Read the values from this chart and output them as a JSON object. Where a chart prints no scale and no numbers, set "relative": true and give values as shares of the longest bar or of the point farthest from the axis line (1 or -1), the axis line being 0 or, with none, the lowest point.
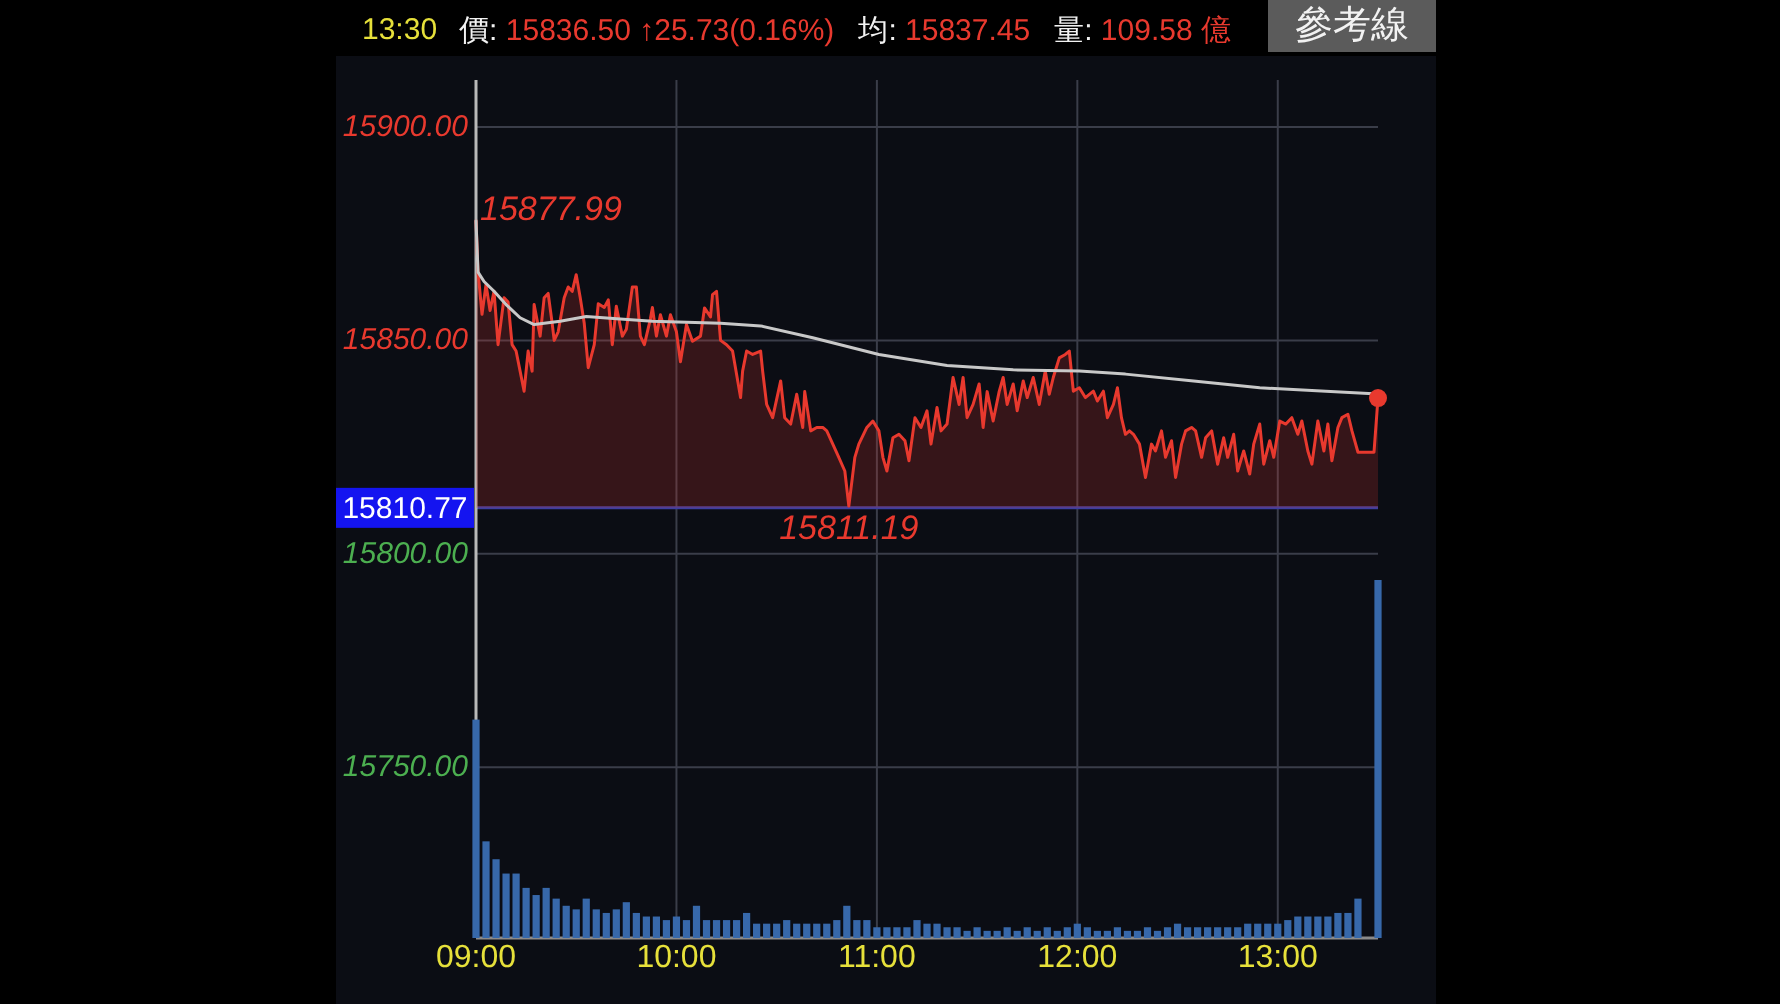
{
  "chart_data": [
    {
      "type": "line",
      "title": "13:30",
      "annotations": [
        "價: 15836.50 ↑25.73(0.16%)",
        "均: 15837.45",
        "量: 109.58 億",
        "參考線",
        {
          "text": "15877.99",
          "x": 9.0,
          "y": 15877.99
        },
        {
          "text": "15811.19",
          "x": 10.86,
          "y": 15811.19
        }
      ],
      "xlim": [
        9,
        13.5
      ],
      "xticks": [
        9,
        10,
        11,
        12,
        13
      ],
      "ylim": [
        15710,
        15911
      ],
      "yticks": [
        {
          "value": 15750,
          "label": "15750.00"
        },
        {
          "value": 15800,
          "label": "15800.00"
        },
        {
          "value": 15850,
          "label": "15850.00"
        },
        {
          "value": 15900,
          "label": "15900.00"
        }
      ],
      "grid": true,
      "tick_labels": "y",
      "ref_lines": [
        {
          "axis": "y",
          "value": 15810.77,
          "label": "15810.77",
          "color": "#3c3fa0"
        }
      ],
      "series": [
        {
          "type": "area",
          "color": "#e8392e",
          "x": [
            9.0,
            9.01,
            9.03,
            9.05,
            9.07,
            9.09,
            9.11,
            9.14,
            9.16,
            9.18,
            9.2,
            9.22,
            9.24,
            9.26,
            9.28,
            9.29,
            9.32,
            9.34,
            9.36,
            9.38,
            9.39,
            9.41,
            9.44,
            9.46,
            9.48,
            9.5,
            9.52,
            9.54,
            9.56,
            9.59,
            9.61,
            9.64,
            9.66,
            9.68,
            9.7,
            9.73,
            9.75,
            9.78,
            9.8,
            9.82,
            9.84,
            9.87,
            9.88,
            9.9,
            9.92,
            9.95,
            9.97,
            10.0,
            10.02,
            10.05,
            10.08,
            10.12,
            10.14,
            10.17,
            10.18,
            10.2,
            10.22,
            10.25,
            10.28,
            10.32,
            10.33,
            10.35,
            10.38,
            10.42,
            10.43,
            10.45,
            10.48,
            10.52,
            10.54,
            10.57,
            10.6,
            10.63,
            10.64,
            10.67,
            10.7,
            10.73,
            10.75,
            10.78,
            10.81,
            10.84,
            10.86,
            10.89,
            10.91,
            10.95,
            10.98,
            11.01,
            11.03,
            11.05,
            11.08,
            11.11,
            11.14,
            11.16,
            11.19,
            11.22,
            11.25,
            11.27,
            11.3,
            11.32,
            11.35,
            11.38,
            11.41,
            11.43,
            11.45,
            11.48,
            11.51,
            11.53,
            11.55,
            11.58,
            11.61,
            11.63,
            11.65,
            11.68,
            11.7,
            11.73,
            11.75,
            11.78,
            11.81,
            11.84,
            11.86,
            11.88,
            11.91,
            11.94,
            11.96,
            11.98,
            12.01,
            12.04,
            12.08,
            12.1,
            12.13,
            12.15,
            12.18,
            12.2,
            12.22,
            12.24,
            12.26,
            12.28,
            12.31,
            12.34,
            12.37,
            12.39,
            12.42,
            12.44,
            12.47,
            12.49,
            12.52,
            12.54,
            12.57,
            12.59,
            12.62,
            12.64,
            12.67,
            12.7,
            12.73,
            12.75,
            12.78,
            12.8,
            12.83,
            12.86,
            12.88,
            12.91,
            12.93,
            12.96,
            12.98,
            13.01,
            13.04,
            13.07,
            13.1,
            13.12,
            13.15,
            13.17,
            13.2,
            13.23,
            13.25,
            13.27,
            13.3,
            13.32,
            13.35,
            13.37,
            13.4,
            13.48,
            13.5
          ],
          "values": [
            15877.99,
            15866.2,
            15856.1,
            15863.1,
            15857.0,
            15861.5,
            15849.0,
            15860.0,
            15859.0,
            15849.0,
            15847.5,
            15842.8,
            15838.1,
            15847.5,
            15842.8,
            15858.4,
            15851.0,
            15860.0,
            15861.0,
            15854.0,
            15850.0,
            15852.0,
            15860.0,
            15862.5,
            15861.5,
            15865.4,
            15860.0,
            15854.0,
            15843.6,
            15849.0,
            15858.6,
            15857.7,
            15859.5,
            15849.0,
            15858.0,
            15851.0,
            15852.6,
            15862.5,
            15862.5,
            15851.0,
            15849.0,
            15855.0,
            15857.7,
            15851.0,
            15856.0,
            15851.0,
            15856.0,
            15852.0,
            15845.0,
            15853.7,
            15849.8,
            15851.0,
            15857.6,
            15855.5,
            15860.7,
            15861.5,
            15850.0,
            15849.0,
            15847.5,
            15836.6,
            15842.8,
            15847.5,
            15846.7,
            15847.5,
            15842.8,
            15835.0,
            15831.9,
            15840.5,
            15831.9,
            15830.4,
            15837.4,
            15829.6,
            15838.0,
            15828.8,
            15829.6,
            15829.6,
            15828.8,
            15825.7,
            15822.6,
            15819.4,
            15811.19,
            15822.6,
            15825.7,
            15829.6,
            15831.1,
            15828.8,
            15822.6,
            15819.4,
            15827.2,
            15828.0,
            15826.5,
            15821.8,
            15831.9,
            15829.6,
            15833.5,
            15825.7,
            15834.3,
            15828.8,
            15830.4,
            15841.3,
            15835.0,
            15841.3,
            15831.9,
            15835.0,
            15839.8,
            15829.6,
            15838.0,
            15831.1,
            15838.0,
            15841.3,
            15835.0,
            15839.8,
            15833.5,
            15840.5,
            15836.6,
            15841.3,
            15835.0,
            15842.8,
            15837.4,
            15841.3,
            15845.9,
            15846.7,
            15847.5,
            15838.1,
            15838.9,
            15836.6,
            15838.1,
            15835.8,
            15838.1,
            15831.9,
            15835.0,
            15838.9,
            15831.9,
            15828.0,
            15828.8,
            15828.0,
            15825.7,
            15817.9,
            15825.7,
            15824.1,
            15828.8,
            15822.6,
            15826.5,
            15817.9,
            15825.7,
            15828.8,
            15829.6,
            15828.8,
            15822.6,
            15827.2,
            15828.8,
            15821.0,
            15827.2,
            15822.6,
            15828.0,
            15819.4,
            15824.1,
            15818.7,
            15825.7,
            15830.4,
            15821.0,
            15826.5,
            15822.6,
            15831.1,
            15830.4,
            15831.9,
            15828.0,
            15831.1,
            15824.1,
            15821.0,
            15831.1,
            15824.1,
            15830.4,
            15821.8,
            15829.6,
            15831.9,
            15832.7,
            15828.8,
            15823.8,
            15823.8,
            15836.5
          ]
        },
        {
          "color": "#c8c8c8",
          "x": [
            9.0,
            9.01,
            9.04,
            9.09,
            9.15,
            9.22,
            9.29,
            9.42,
            9.55,
            9.72,
            9.88,
            10.22,
            10.42,
            10.68,
            11.01,
            11.35,
            11.68,
            12.01,
            12.24,
            12.58,
            12.91,
            13.24,
            13.5
          ],
          "values": [
            15878.0,
            15866.0,
            15863.8,
            15861.5,
            15858.4,
            15855.3,
            15853.7,
            15854.5,
            15855.6,
            15855.0,
            15854.5,
            15854.0,
            15853.4,
            15850.6,
            15846.7,
            15844.1,
            15843.1,
            15842.8,
            15842.1,
            15840.5,
            15838.9,
            15838.1,
            15837.45
          ]
        },
        {
          "type": "scatter",
          "color": "#e8392e",
          "marker": "circle",
          "x": [
            13.5
          ],
          "values": [
            15836.5
          ]
        }
      ]
    },
    {
      "type": "bar",
      "relative": true,
      "color": "#3768aa",
      "xlim": [
        9,
        13.5
      ],
      "xticks": [
        {
          "value": 9,
          "label": "09:00"
        },
        {
          "value": 10,
          "label": "10:00"
        },
        {
          "value": 11,
          "label": "11:00"
        },
        {
          "value": 12,
          "label": "12:00"
        },
        {
          "value": 13,
          "label": "13:00"
        }
      ],
      "x": [
        9.0,
        9.05,
        9.1,
        9.15,
        9.2,
        9.25,
        9.3,
        9.35,
        9.4,
        9.45,
        9.5,
        9.55,
        9.6,
        9.65,
        9.7,
        9.75,
        9.8,
        9.85,
        9.9,
        9.95,
        10.0,
        10.05,
        10.1,
        10.15,
        10.2,
        10.25,
        10.3,
        10.35,
        10.4,
        10.45,
        10.5,
        10.55,
        10.6,
        10.65,
        10.7,
        10.75,
        10.8,
        10.85,
        10.9,
        10.95,
        11.0,
        11.05,
        11.1,
        11.15,
        11.2,
        11.25,
        11.3,
        11.35,
        11.4,
        11.45,
        11.5,
        11.55,
        11.6,
        11.65,
        11.7,
        11.75,
        11.8,
        11.85,
        11.9,
        11.95,
        12.0,
        12.05,
        12.1,
        12.15,
        12.2,
        12.25,
        12.3,
        12.35,
        12.4,
        12.45,
        12.5,
        12.55,
        12.6,
        12.65,
        12.7,
        12.75,
        12.8,
        12.85,
        12.9,
        12.95,
        13.0,
        13.05,
        13.1,
        13.15,
        13.2,
        13.25,
        13.3,
        13.35,
        13.4,
        13.45,
        13.5
      ],
      "values": [
        0.61,
        0.27,
        0.22,
        0.18,
        0.18,
        0.14,
        0.12,
        0.14,
        0.11,
        0.09,
        0.08,
        0.11,
        0.08,
        0.07,
        0.08,
        0.1,
        0.07,
        0.06,
        0.06,
        0.05,
        0.06,
        0.05,
        0.09,
        0.05,
        0.05,
        0.05,
        0.05,
        0.07,
        0.04,
        0.04,
        0.04,
        0.05,
        0.04,
        0.04,
        0.04,
        0.04,
        0.05,
        0.09,
        0.05,
        0.05,
        0.03,
        0.03,
        0.03,
        0.03,
        0.05,
        0.04,
        0.04,
        0.03,
        0.03,
        0.02,
        0.03,
        0.02,
        0.02,
        0.03,
        0.02,
        0.03,
        0.02,
        0.03,
        0.02,
        0.03,
        0.04,
        0.03,
        0.02,
        0.02,
        0.03,
        0.02,
        0.02,
        0.03,
        0.02,
        0.03,
        0.04,
        0.03,
        0.03,
        0.03,
        0.03,
        0.03,
        0.03,
        0.04,
        0.04,
        0.04,
        0.04,
        0.05,
        0.06,
        0.06,
        0.06,
        0.06,
        0.07,
        0.07,
        0.11,
        0,
        1.0
      ]
    }
  ]
}
